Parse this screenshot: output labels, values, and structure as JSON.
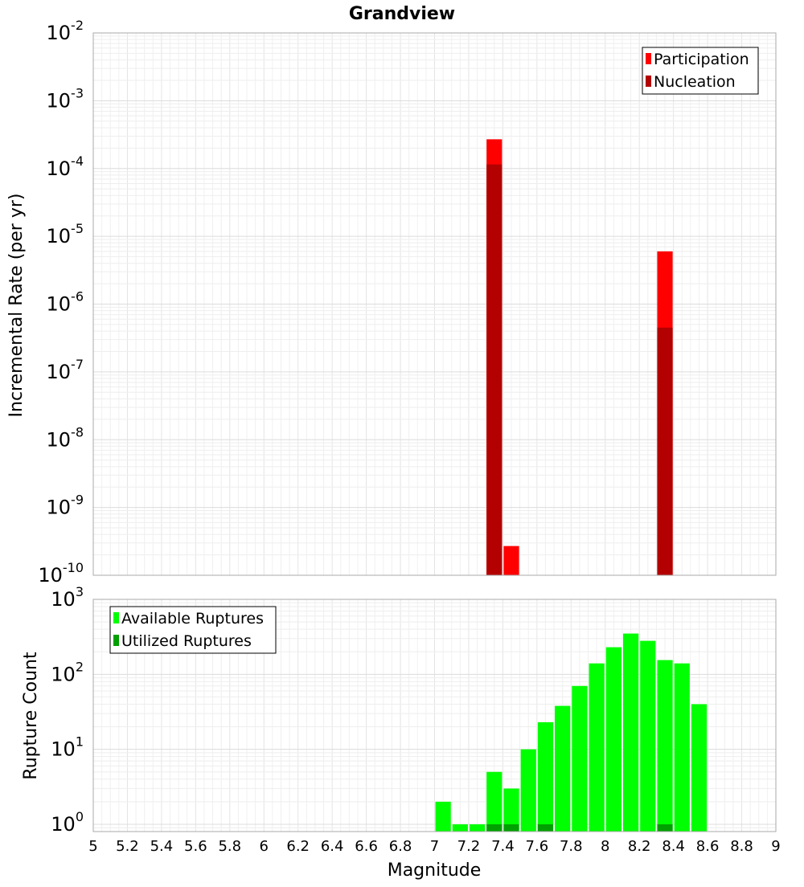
{
  "chart_data": [
    {
      "type": "bar",
      "title": "Grandview",
      "ylabel": "Incremental Rate (per yr)",
      "xlabel": "",
      "yscale": "log",
      "ylim": [
        1e-10,
        0.01
      ],
      "xlim": [
        5,
        9
      ],
      "y_tick_exponents": [
        "-2",
        "-3",
        "-4",
        "-5",
        "-6",
        "-7",
        "-8",
        "-9",
        "-10"
      ],
      "y_tick_base": "10",
      "grid": true,
      "legend_position": "top-right",
      "series": [
        {
          "name": "Participation",
          "color": "#ff0000",
          "points": [
            {
              "x": 7.35,
              "y": 0.00027
            },
            {
              "x": 7.45,
              "y": 2.7e-10
            },
            {
              "x": 8.35,
              "y": 6e-06
            }
          ]
        },
        {
          "name": "Nucleation",
          "color": "#b30000",
          "points": [
            {
              "x": 7.35,
              "y": 0.000115
            },
            {
              "x": 8.35,
              "y": 4.5e-07
            }
          ]
        }
      ]
    },
    {
      "type": "bar",
      "title": "",
      "ylabel": "Rupture Count",
      "xlabel": "Magnitude",
      "yscale": "log",
      "ylim": [
        0.8,
        1000
      ],
      "xlim": [
        5,
        9
      ],
      "y_tick_exponents": [
        "3",
        "2",
        "1",
        "0"
      ],
      "y_tick_base": "10",
      "x_ticks": [
        "5",
        "5.2",
        "5.4",
        "5.6",
        "5.8",
        "6",
        "6.2",
        "6.4",
        "6.6",
        "6.8",
        "7",
        "7.2",
        "7.4",
        "7.6",
        "7.8",
        "8",
        "8.2",
        "8.4",
        "8.6",
        "8.8",
        "9"
      ],
      "grid": true,
      "legend_position": "top-left",
      "series": [
        {
          "name": "Available Ruptures",
          "color": "#00ff00",
          "points": [
            {
              "x": 7.05,
              "y": 2
            },
            {
              "x": 7.15,
              "y": 1
            },
            {
              "x": 7.25,
              "y": 1
            },
            {
              "x": 7.35,
              "y": 5
            },
            {
              "x": 7.45,
              "y": 3
            },
            {
              "x": 7.55,
              "y": 10
            },
            {
              "x": 7.65,
              "y": 23
            },
            {
              "x": 7.75,
              "y": 38
            },
            {
              "x": 7.85,
              "y": 70
            },
            {
              "x": 7.95,
              "y": 140
            },
            {
              "x": 8.05,
              "y": 230
            },
            {
              "x": 8.15,
              "y": 350
            },
            {
              "x": 8.25,
              "y": 280
            },
            {
              "x": 8.35,
              "y": 155
            },
            {
              "x": 8.45,
              "y": 140
            },
            {
              "x": 8.55,
              "y": 40
            }
          ]
        },
        {
          "name": "Utilized Ruptures",
          "color": "#00a000",
          "points": [
            {
              "x": 7.35,
              "y": 1
            },
            {
              "x": 7.45,
              "y": 1
            },
            {
              "x": 7.65,
              "y": 1
            },
            {
              "x": 8.35,
              "y": 1
            }
          ]
        }
      ]
    }
  ]
}
